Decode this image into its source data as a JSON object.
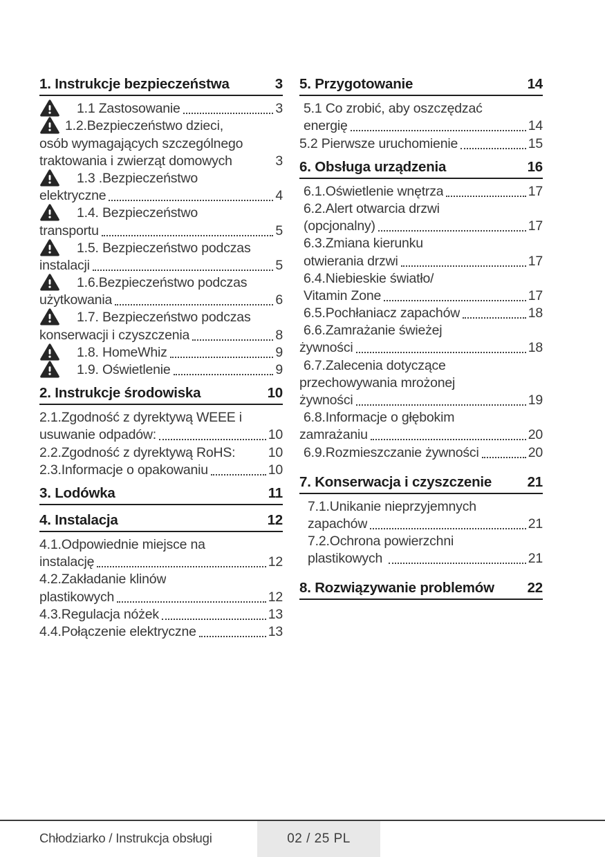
{
  "colors": {
    "text": "#373737",
    "heading": "#1c1c1c",
    "icon": "#262626",
    "footer_box_bg": "#e8e8e8",
    "rule": "#3a3a3a"
  },
  "icons": {
    "warning": "filled-rounded-triangle-with-exclamation"
  },
  "toc": {
    "columns": [
      {
        "sections": [
          {
            "title": "1. Instrukcje bezpieczeństwa",
            "page": "3",
            "entries": [
              {
                "icon": true,
                "tab": true,
                "text": "1.1 Zastosowanie",
                "dots": true,
                "page": "3"
              },
              {
                "icon": true,
                "tab": false,
                "text": "1.2.Bezpieczeństwo dzieci,"
              },
              {
                "text": "osób wymagających szczególnego"
              },
              {
                "text": "traktowania i zwierząt domowych",
                "page": "3"
              },
              {
                "icon": true,
                "tab": true,
                "text": "1.3 .Bezpieczeństwo"
              },
              {
                "text": "elektryczne",
                "dots": true,
                "page": "4"
              },
              {
                "icon": true,
                "tab": true,
                "text": "1.4. Bezpieczeństwo"
              },
              {
                "text": "transportu",
                "dots": true,
                "page": "5"
              },
              {
                "icon": true,
                "tab": true,
                "text": "1.5. Bezpieczeństwo podczas"
              },
              {
                "text": "instalacji",
                "dots": true,
                "page": "5"
              },
              {
                "icon": true,
                "tab": true,
                "text": "1.6.Bezpieczeństwo podczas"
              },
              {
                "text": "użytkowania",
                "dots": true,
                "page": "6"
              },
              {
                "icon": true,
                "tab": true,
                "text": "1.7. Bezpieczeństwo podczas"
              },
              {
                "text": "konserwacji i czyszczenia",
                "dots": true,
                "page": "8"
              },
              {
                "icon": true,
                "tab": true,
                "text": "1.8. HomeWhiz",
                "dots": true,
                "page": "9"
              },
              {
                "icon": true,
                "tab": true,
                "text": "1.9. Oświetlenie",
                "dots": true,
                "page": "9"
              }
            ]
          },
          {
            "title": "2. Instrukcje środowiska",
            "page": "10",
            "entries": [
              {
                "text": "2.1.Zgodność z dyrektywą WEEE i"
              },
              {
                "text": "usuwanie odpadów:",
                "dots": true,
                "page": "10"
              },
              {
                "text": "2.2.Zgodność z dyrektywą RoHS:",
                "page": "10"
              },
              {
                "text": "2.3.Informacje o opakowaniu",
                "dots": true,
                "page": "10"
              }
            ]
          },
          {
            "title": "3.  Lodówka",
            "page": "11",
            "entries": []
          },
          {
            "title": "4.  Instalacja",
            "page": "12",
            "entries": [
              {
                "text": "4.1.Odpowiednie miejsce na"
              },
              {
                "text": "instalację",
                "dots": true,
                "page": "12"
              },
              {
                "text": "4.2.Zakładanie klinów"
              },
              {
                "text": "plastikowych",
                "dots": true,
                "page": "12"
              },
              {
                "text": "4.3.Regulacja nóżek",
                "dots": true,
                "page": "13"
              },
              {
                "text": "4.4.Połączenie elektryczne",
                "dots": true,
                "page": "13"
              }
            ]
          }
        ]
      },
      {
        "sections": [
          {
            "title": "5.  Przygotowanie",
            "page": "14",
            "entries": [
              {
                "ind": 1,
                "text": "5.1 Co zrobić, aby oszczędzać"
              },
              {
                "ind": 1,
                "text": "energię",
                "dots": true,
                "page": "14"
              },
              {
                "text": "5.2 Pierwsze uruchomienie",
                "dots": true,
                "page": "15"
              }
            ]
          },
          {
            "title": "6.  Obsługa urządzenia",
            "page": "16",
            "entries": [
              {
                "ind": 1,
                "text": "6.1.Oświetlenie wnętrza",
                "dots": true,
                "page": "17"
              },
              {
                "ind": 1,
                "text": "6.2.Alert otwarcia drzwi"
              },
              {
                "ind": 1,
                "text": "(opcjonalny)",
                "dots": true,
                "page": "17"
              },
              {
                "ind": 1,
                "text": "6.3.Zmiana kierunku"
              },
              {
                "ind": 1,
                "text": "otwierania drzwi",
                "dots": true,
                "page": "17"
              },
              {
                "ind": 1,
                "text": "6.4.Niebieskie światło/"
              },
              {
                "ind": 1,
                "text": "Vitamin Zone",
                "dots": true,
                "page": "17"
              },
              {
                "ind": 1,
                "text": "6.5.Pochłaniacz zapachów",
                "dots": true,
                "page": "18"
              },
              {
                "ind": 1,
                "text": "6.6.Zamrażanie świeżej"
              },
              {
                "text": "żywności",
                "dots": true,
                "page": "18"
              },
              {
                "ind": 1,
                "text": "6.7.Zalecenia dotyczące"
              },
              {
                "text": "przechowywania mrożonej"
              },
              {
                "text": "żywności",
                "dots": true,
                "page": "19"
              },
              {
                "ind": 1,
                "text": "6.8.Informacje o głębokim"
              },
              {
                "text": "zamrażaniu",
                "dots": true,
                "page": "20"
              },
              {
                "ind": 1,
                "text": "6.9.Rozmieszczanie żywności",
                "dots": true,
                "page": "20"
              }
            ]
          },
          {
            "title": "7.  Konserwacja i czyszczenie",
            "page": "21",
            "gap": "lg",
            "entries": [
              {
                "ind": 2,
                "text": "7.1.Unikanie nieprzyjemnych"
              },
              {
                "ind": 2,
                "text": "zapachów",
                "dots": true,
                "page": "21"
              },
              {
                "ind": 2,
                "text": "7.2.Ochrona powierzchni"
              },
              {
                "ind": 2,
                "text": "plastikowych ",
                "dots": true,
                "page": "21"
              }
            ]
          },
          {
            "title": "8. Rozwiązywanie problemów",
            "page": "22",
            "gap": "lg",
            "entries": []
          }
        ]
      }
    ]
  },
  "footer": {
    "left_text": "Chłodziarko / Instrukcja obsługi",
    "page_indicator": "02 / 25 PL"
  }
}
